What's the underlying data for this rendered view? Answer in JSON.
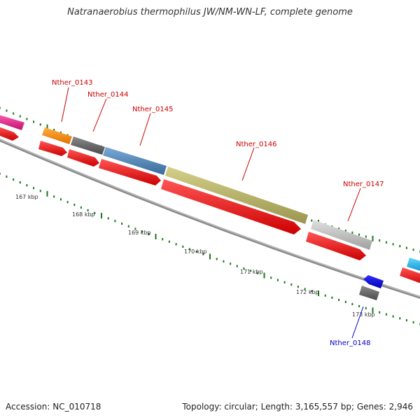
{
  "title": "Natranaerobius thermophilus JW/NM-WN-LF, complete genome",
  "footer": {
    "accession": "Accession: NC_010718",
    "summary": "Topology: circular; Length: 3,165,557 bp; Genes: 2,946"
  },
  "kbp_labels": [
    "167 kbp",
    "168 kbp",
    "169 kbp",
    "170 kbp",
    "171 kbp",
    "172 kbp",
    "173 kbp"
  ],
  "genes": [
    {
      "name": "Nther_0143",
      "color": "#cc0000"
    },
    {
      "name": "Nther_0144",
      "color": "#cc0000"
    },
    {
      "name": "Nther_0145",
      "color": "#cc0000"
    },
    {
      "name": "Nther_0146",
      "color": "#cc0000"
    },
    {
      "name": "Nther_0147",
      "color": "#cc0000"
    },
    {
      "name": "Nther_0148",
      "color": "#0000cc"
    }
  ],
  "feature_colors": {
    "cds_forward": "#ff0000",
    "orange": "#ff8c00",
    "dark_gray": "#666666",
    "steel_blue": "#4a82b6",
    "olive": "#b8b46a",
    "light_gray": "#c0c0c0",
    "magenta": "#e0207f",
    "cyan": "#1ab8e8",
    "blue": "#0000ee",
    "backbone": "#7a7a7a",
    "ticks": "#1a7a1a"
  }
}
